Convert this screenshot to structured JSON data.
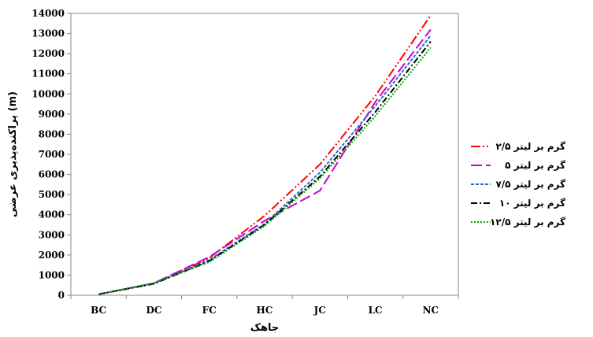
{
  "chart_data": {
    "type": "line",
    "categories": [
      "BC",
      "DC",
      "FC",
      "HC",
      "JC",
      "LC",
      "NC"
    ],
    "xlabel": "جاهک",
    "ylabel": "پراکنده‌پذیری عرضی (m)",
    "ylim": [
      0,
      14000
    ],
    "yticks": [
      0,
      1000,
      2000,
      3000,
      4000,
      5000,
      6000,
      7000,
      8000,
      9000,
      10000,
      11000,
      12000,
      13000,
      14000
    ],
    "grid": false,
    "legend_position": "right",
    "series": [
      {
        "name": "۲/۵ گرم بر لیتر",
        "color": "#ff0000",
        "dash": "dash-dot-dot",
        "values": [
          50,
          580,
          1850,
          3950,
          6500,
          9900,
          13900
        ]
      },
      {
        "name": "۵ گرم بر لیتر",
        "color": "#cc00cc",
        "dash": "long-dash",
        "values": [
          50,
          600,
          1900,
          3700,
          5200,
          9600,
          13200
        ]
      },
      {
        "name": "۷/۵ گرم بر لیتر",
        "color": "#3366cc",
        "dash": "short-dash",
        "values": [
          50,
          600,
          1750,
          3550,
          6100,
          9400,
          12900
        ]
      },
      {
        "name": "۱۰ گرم بر لیتر",
        "color": "#000000",
        "dash": "dash-dot",
        "values": [
          50,
          570,
          1700,
          3500,
          5900,
          9100,
          12600
        ]
      },
      {
        "name": "۱۲/۵ گرم بر لیتر",
        "color": "#00aa00",
        "dash": "dotted",
        "values": [
          50,
          600,
          1650,
          3450,
          5800,
          8900,
          12300
        ]
      }
    ]
  }
}
